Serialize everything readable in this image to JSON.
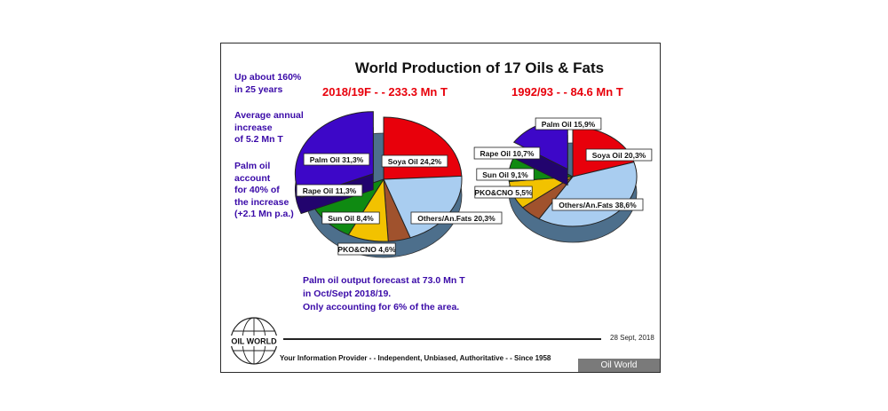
{
  "slide": {
    "title": "World Production of 17 Oils & Fats",
    "left_subtitle": "2018/19F - -  233.3 Mn T",
    "right_subtitle": "1992/93 - - 84.6 Mn T",
    "side_notes": [
      [
        "Up about 160%",
        "in 25 years"
      ],
      [
        "Average annual",
        "increase",
        "of 5.2 Mn T"
      ],
      [
        "Palm oil",
        "account",
        "for 40% of",
        "the increase",
        "(+2.1 Mn p.a.)"
      ]
    ],
    "bottom_note": [
      "Palm oil output forecast at 73.0 Mn T",
      "in Oct/Sept 2018/19.",
      "Only accounting for 6% of the area."
    ],
    "date": "28 Sept, 2018",
    "tagline": "Your Information Provider - - Independent, Unbiased, Authoritative - - Since 1958",
    "brand": "Oil World",
    "logo_text": "OIL WORLD"
  },
  "colors": {
    "palm": "#3d07c8",
    "soya": "#e8000b",
    "rape": "#0f8a12",
    "sun": "#f2c200",
    "pko": "#a0522d",
    "others": "#a9cdf0",
    "title_red": "#e8000b",
    "note_blue": "#3a0aa8"
  },
  "chart_data": [
    {
      "type": "pie",
      "title": "2018/19F - -  233.3 Mn T",
      "categories": [
        "Soya Oil",
        "Others/An.Fats",
        "PKO&CNO",
        "Sun Oil",
        "Rape Oil",
        "Palm Oil"
      ],
      "values": [
        24.2,
        20.3,
        4.6,
        8.4,
        11.3,
        31.3
      ],
      "labels": [
        "Soya Oil 24,2%",
        "Others/An.Fats 20,3%",
        "PKO&CNO 4,6%",
        "Sun Oil 8,4%",
        "Rape Oil 11,3%",
        "Palm Oil 31,3%"
      ],
      "exploded": [
        "Palm Oil"
      ],
      "unit": "%"
    },
    {
      "type": "pie",
      "title": "1992/93 - - 84.6 Mn T",
      "categories": [
        "Soya Oil",
        "Others/An.Fats",
        "PKO&CNO",
        "Sun Oil",
        "Rape Oil",
        "Palm Oil"
      ],
      "values": [
        20.3,
        38.6,
        5.5,
        9.1,
        10.7,
        15.9
      ],
      "labels": [
        "Soya Oil 20,3%",
        "Others/An.Fats 38,6%",
        "PKO&CNO 5,5%",
        "Sun Oil 9,1%",
        "Rape Oil 10,7%",
        "Palm Oil 15,9%"
      ],
      "exploded": [
        "Palm Oil"
      ],
      "unit": "%"
    }
  ]
}
